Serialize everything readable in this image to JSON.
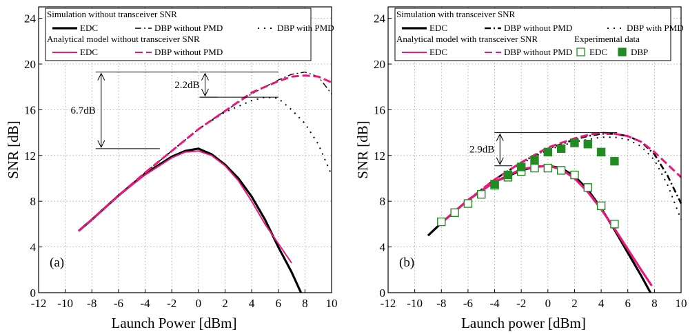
{
  "chart_data": [
    {
      "type": "line",
      "panel_label": "(a)",
      "xlabel": "Launch Power [dBm]",
      "ylabel": "SNR [dB]",
      "xlim": [
        -12,
        10
      ],
      "ylim": [
        0,
        25
      ],
      "xticks": [
        -12,
        -10,
        -8,
        -6,
        -4,
        -2,
        0,
        2,
        4,
        6,
        8,
        10
      ],
      "yticks": [
        0,
        4,
        8,
        12,
        16,
        20,
        24
      ],
      "grid": "dotted",
      "legend": {
        "placement": "top",
        "group1_title": "Simulation without transceiver SNR",
        "group1_items": [
          "EDC",
          "DBP without PMD",
          "DBP with PMD"
        ],
        "group2_title": "Analytical model without transceiver SNR",
        "group2_items": [
          "EDC",
          "DBP without PMD"
        ]
      },
      "annotations": [
        {
          "text": "6.7dB",
          "x": -7.3,
          "y1": 12.6,
          "y2": 19.3
        },
        {
          "text": "2.2dB",
          "x": 0.5,
          "y1": 17.1,
          "y2": 19.3
        }
      ],
      "series": [
        {
          "name": "EDC",
          "group": "simulation",
          "color": "#000000",
          "style": "solid-thick",
          "x": [
            -9,
            -8,
            -6,
            -4,
            -2,
            -1,
            0,
            1,
            2,
            3,
            4,
            5,
            6,
            7,
            7.7
          ],
          "y": [
            5.4,
            6.4,
            8.5,
            10.4,
            11.9,
            12.4,
            12.6,
            12.1,
            11.2,
            10.0,
            8.4,
            6.4,
            4.0,
            1.8,
            0
          ]
        },
        {
          "name": "DBP without PMD",
          "group": "simulation",
          "color": "#000000",
          "style": "dashdot",
          "x": [
            -9,
            -8,
            -6,
            -4,
            -2,
            0,
            2,
            4,
            6,
            7,
            8,
            9,
            10
          ],
          "y": [
            5.4,
            6.4,
            8.5,
            10.5,
            12.4,
            14.3,
            15.9,
            17.4,
            18.6,
            19.1,
            19.3,
            18.9,
            17.4
          ]
        },
        {
          "name": "DBP with PMD",
          "group": "simulation",
          "color": "#000000",
          "style": "dotted",
          "x": [
            -9,
            -8,
            -6,
            -4,
            -2,
            0,
            2,
            4,
            5,
            6,
            7,
            8,
            9,
            10
          ],
          "y": [
            5.4,
            6.4,
            8.5,
            10.5,
            12.4,
            14.3,
            15.8,
            16.8,
            17.1,
            17.0,
            16.0,
            14.8,
            13.0,
            10.3
          ]
        },
        {
          "name": "EDC",
          "group": "analytical",
          "color": "#e8197c",
          "style": "solid",
          "x": [
            -9,
            -8,
            -6,
            -4,
            -2,
            -1,
            0,
            1,
            2,
            3,
            4,
            5,
            6,
            7
          ],
          "y": [
            5.4,
            6.4,
            8.5,
            10.3,
            11.8,
            12.3,
            12.4,
            12.0,
            11.1,
            9.8,
            8.0,
            6.0,
            4.3,
            2.6
          ]
        },
        {
          "name": "DBP without PMD",
          "group": "analytical",
          "color": "#e8197c",
          "style": "dashed-thick",
          "x": [
            -9,
            -8,
            -6,
            -4,
            -2,
            0,
            2,
            4,
            6,
            7,
            8,
            9,
            10
          ],
          "y": [
            5.4,
            6.4,
            8.5,
            10.5,
            12.4,
            14.3,
            15.9,
            17.5,
            18.5,
            18.9,
            19.0,
            18.9,
            18.4
          ]
        }
      ]
    },
    {
      "type": "line",
      "panel_label": "(b)",
      "xlabel": "Launch power [dBm]",
      "ylabel": "SNR [dB]",
      "xlim": [
        -12,
        10
      ],
      "ylim": [
        0,
        25
      ],
      "xticks": [
        -12,
        -10,
        -8,
        -6,
        -4,
        -2,
        0,
        2,
        4,
        6,
        8,
        10
      ],
      "yticks": [
        0,
        4,
        8,
        12,
        16,
        20,
        24
      ],
      "grid": "dotted",
      "legend": {
        "placement": "top",
        "group1_title": "Simulation with transceiver SNR",
        "group1_items": [
          "EDC",
          "DBP without PMD",
          "DBP with PMD"
        ],
        "group2_title": "Analytical model with transceiver SNR",
        "group2_items": [
          "EDC",
          "DBP without PMD"
        ],
        "group3_title": "Experimental data",
        "group3_items": [
          "EDC",
          "DBP"
        ]
      },
      "annotations": [
        {
          "text": "2.9dB",
          "x": -3.6,
          "y1": 11.1,
          "y2": 14.0
        }
      ],
      "series": [
        {
          "name": "EDC",
          "group": "simulation",
          "color": "#000000",
          "style": "solid-thick",
          "x": [
            -9,
            -8,
            -6,
            -4,
            -2,
            -1,
            0,
            1,
            2,
            3,
            4,
            5,
            6,
            7,
            7.7
          ],
          "y": [
            5.0,
            6.1,
            8.1,
            9.7,
            10.7,
            11.0,
            11.1,
            10.9,
            10.2,
            9.0,
            7.4,
            5.5,
            3.5,
            1.5,
            0
          ]
        },
        {
          "name": "DBP without PMD",
          "group": "simulation",
          "color": "#000000",
          "style": "dashdot-thick",
          "x": [
            -9,
            -8,
            -6,
            -4,
            -2,
            0,
            2,
            3,
            4,
            5,
            6,
            7,
            8,
            9,
            10
          ],
          "y": [
            5.0,
            6.1,
            8.1,
            9.9,
            11.4,
            12.6,
            13.4,
            13.7,
            13.9,
            13.9,
            13.7,
            13.2,
            12.1,
            10.2,
            7.8
          ]
        },
        {
          "name": "DBP with PMD",
          "group": "simulation",
          "color": "#000000",
          "style": "dotted",
          "x": [
            -9,
            -8,
            -6,
            -4,
            -2,
            0,
            2,
            3,
            4,
            5,
            6,
            7,
            8,
            9,
            10
          ],
          "y": [
            5.0,
            6.1,
            8.1,
            9.9,
            11.3,
            12.5,
            13.2,
            13.4,
            13.6,
            13.6,
            13.4,
            12.8,
            11.6,
            9.4,
            6.4
          ]
        },
        {
          "name": "EDC",
          "group": "analytical",
          "color": "#e8197c",
          "style": "solid-thick",
          "x": [
            -8,
            -6,
            -4,
            -2,
            -1,
            0,
            1,
            2,
            3,
            4,
            5,
            6,
            7,
            7.8
          ],
          "y": [
            6.1,
            8.1,
            9.7,
            10.8,
            11.0,
            11.1,
            10.8,
            10.0,
            8.8,
            7.3,
            5.6,
            3.8,
            2.0,
            0.6
          ]
        },
        {
          "name": "DBP without PMD",
          "group": "analytical",
          "color": "#e8197c",
          "style": "dashed-thick",
          "x": [
            -8,
            -6,
            -4,
            -2,
            0,
            2,
            3,
            4,
            5,
            6,
            7,
            8,
            9,
            10
          ],
          "y": [
            6.1,
            8.1,
            9.9,
            11.4,
            12.7,
            13.5,
            13.8,
            14.0,
            13.9,
            13.7,
            13.2,
            12.3,
            11.2,
            10.1
          ]
        },
        {
          "name": "EDC",
          "group": "experimental",
          "color": "#228b22",
          "style": "open-square",
          "x": [
            -8,
            -7,
            -6,
            -5,
            -4,
            -3,
            -2,
            -1,
            0,
            1,
            2,
            3,
            4,
            5
          ],
          "y": [
            6.2,
            7.0,
            7.8,
            8.6,
            9.4,
            10.1,
            10.6,
            10.9,
            10.9,
            10.7,
            10.3,
            9.2,
            7.6,
            6.0
          ]
        },
        {
          "name": "DBP",
          "group": "experimental",
          "color": "#228b22",
          "style": "filled-square",
          "x": [
            -4,
            -3,
            -2,
            -1,
            0,
            1,
            2,
            3,
            4,
            5
          ],
          "y": [
            9.5,
            10.3,
            11.0,
            11.6,
            12.3,
            12.6,
            13.1,
            13.0,
            12.3,
            11.5
          ]
        }
      ]
    }
  ]
}
